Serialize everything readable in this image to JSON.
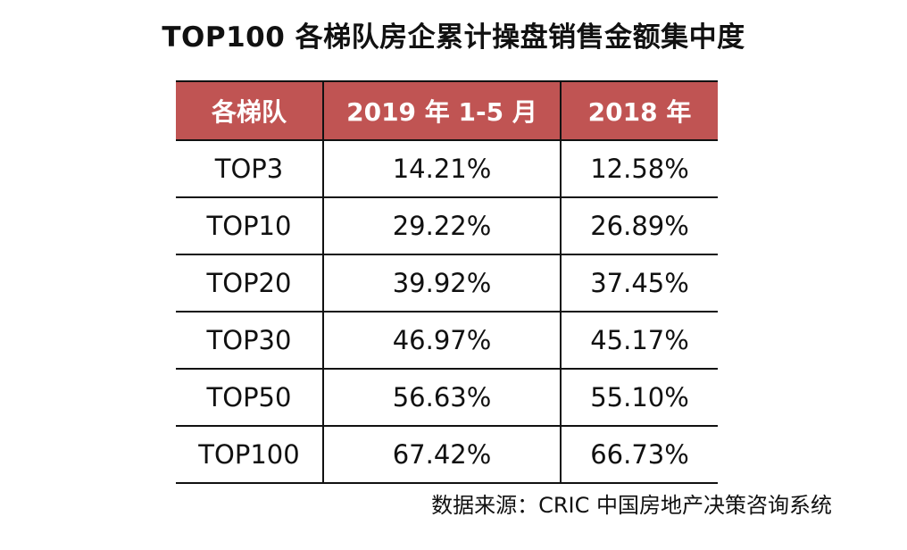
{
  "chart_data": {
    "type": "table",
    "title": "TOP100 各梯队房企累计操盘销售金额集中度",
    "columns": [
      "各梯队",
      "2019 年 1-5 月",
      "2018 年"
    ],
    "rows": [
      [
        "TOP3",
        "14.21%",
        "12.58%"
      ],
      [
        "TOP10",
        "29.22%",
        "26.89%"
      ],
      [
        "TOP20",
        "39.92%",
        "37.45%"
      ],
      [
        "TOP30",
        "46.97%",
        "45.17%"
      ],
      [
        "TOP50",
        "56.63%",
        "55.10%"
      ],
      [
        "TOP100",
        "67.42%",
        "66.73%"
      ]
    ],
    "source": "数据来源：CRIC 中国房地产决策咨询系统"
  },
  "colors": {
    "header_bg": "#c05453",
    "header_text": "#ffffff",
    "border": "#111111"
  }
}
